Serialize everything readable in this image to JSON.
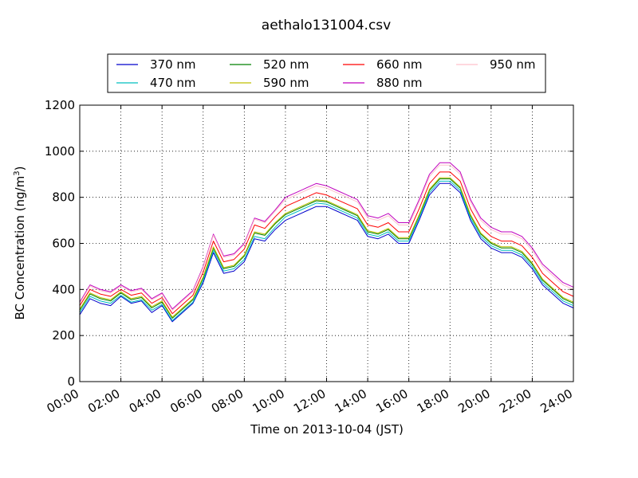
{
  "chart_data": {
    "type": "line",
    "title": "aethalo131004.csv",
    "xlabel": "Time on 2013-10-04 (JST)",
    "ylabel": "BC Concentration (ng/m³)",
    "ylabel_parts": {
      "main": "BC Concentration (ng/m",
      "sup": "3",
      "close": ")"
    },
    "xlim": [
      "00:00",
      "24:00"
    ],
    "ylim": [
      0,
      1200
    ],
    "xticks": [
      "00:00",
      "02:00",
      "04:00",
      "06:00",
      "08:00",
      "10:00",
      "12:00",
      "14:00",
      "16:00",
      "18:00",
      "20:00",
      "22:00",
      "24:00"
    ],
    "yticks": [
      0,
      200,
      400,
      600,
      800,
      1000,
      1200
    ],
    "grid": true,
    "legend_position": "top, above plot",
    "x": [
      "00:00",
      "00:30",
      "01:00",
      "01:30",
      "02:00",
      "02:30",
      "03:00",
      "03:30",
      "04:00",
      "04:30",
      "05:00",
      "05:30",
      "06:00",
      "06:30",
      "07:00",
      "07:30",
      "08:00",
      "08:30",
      "09:00",
      "09:30",
      "10:00",
      "10:30",
      "11:00",
      "11:30",
      "12:00",
      "12:30",
      "13:00",
      "13:30",
      "14:00",
      "14:30",
      "15:00",
      "15:30",
      "16:00",
      "16:30",
      "17:00",
      "17:30",
      "18:00",
      "18:30",
      "19:00",
      "19:30",
      "20:00",
      "20:30",
      "21:00",
      "21:30",
      "22:00",
      "22:30",
      "23:00",
      "23:30",
      "24:00"
    ],
    "series": [
      {
        "name": "370 nm",
        "color": "#0000cc",
        "values": [
          290,
          360,
          340,
          330,
          370,
          340,
          350,
          300,
          330,
          260,
          300,
          340,
          430,
          560,
          470,
          480,
          520,
          620,
          610,
          660,
          700,
          720,
          740,
          760,
          760,
          740,
          720,
          700,
          630,
          620,
          640,
          600,
          600,
          700,
          810,
          860,
          860,
          820,
          700,
          620,
          580,
          560,
          560,
          540,
          490,
          420,
          380,
          340,
          320
        ]
      },
      {
        "name": "470 nm",
        "color": "#00bfbf",
        "values": [
          300,
          370,
          350,
          340,
          375,
          345,
          355,
          310,
          335,
          265,
          305,
          345,
          440,
          570,
          480,
          490,
          530,
          630,
          620,
          670,
          715,
          735,
          755,
          775,
          770,
          750,
          730,
          710,
          640,
          630,
          650,
          610,
          610,
          710,
          820,
          870,
          870,
          830,
          710,
          630,
          590,
          570,
          570,
          550,
          500,
          430,
          390,
          350,
          330
        ]
      },
      {
        "name": "520 nm",
        "color": "#008000",
        "values": [
          310,
          380,
          360,
          350,
          385,
          355,
          365,
          320,
          345,
          275,
          315,
          355,
          450,
          580,
          490,
          500,
          545,
          645,
          635,
          685,
          725,
          745,
          765,
          785,
          780,
          760,
          740,
          720,
          650,
          640,
          660,
          620,
          620,
          720,
          830,
          880,
          880,
          840,
          720,
          640,
          600,
          580,
          580,
          560,
          510,
          440,
          400,
          360,
          340
        ]
      },
      {
        "name": "590 nm",
        "color": "#bfbf00",
        "values": [
          315,
          385,
          365,
          355,
          390,
          360,
          370,
          325,
          350,
          280,
          320,
          360,
          455,
          585,
          495,
          505,
          550,
          650,
          640,
          690,
          730,
          750,
          770,
          790,
          785,
          765,
          745,
          725,
          655,
          645,
          665,
          625,
          625,
          725,
          835,
          885,
          885,
          845,
          725,
          645,
          605,
          585,
          585,
          565,
          515,
          445,
          405,
          365,
          345
        ]
      },
      {
        "name": "660 nm",
        "color": "#ff0000",
        "values": [
          330,
          400,
          380,
          370,
          400,
          375,
          385,
          340,
          365,
          295,
          335,
          375,
          475,
          610,
          520,
          530,
          575,
          680,
          665,
          715,
          760,
          780,
          800,
          820,
          810,
          790,
          770,
          750,
          680,
          670,
          690,
          650,
          650,
          750,
          860,
          910,
          910,
          870,
          750,
          670,
          630,
          610,
          610,
          590,
          540,
          470,
          430,
          390,
          370
        ]
      },
      {
        "name": "880 nm",
        "color": "#bf00bf",
        "values": [
          345,
          420,
          400,
          390,
          420,
          395,
          405,
          360,
          385,
          315,
          355,
          395,
          500,
          640,
          545,
          555,
          600,
          710,
          695,
          745,
          800,
          820,
          840,
          860,
          850,
          830,
          810,
          790,
          720,
          710,
          730,
          690,
          690,
          790,
          900,
          950,
          950,
          910,
          790,
          710,
          670,
          650,
          650,
          630,
          580,
          510,
          470,
          430,
          410
        ]
      },
      {
        "name": "950 nm",
        "color": "#ffc0cb",
        "values": [
          340,
          415,
          395,
          385,
          415,
          390,
          400,
          355,
          380,
          310,
          350,
          390,
          495,
          635,
          540,
          550,
          595,
          705,
          690,
          740,
          790,
          810,
          830,
          850,
          840,
          820,
          800,
          780,
          710,
          700,
          720,
          680,
          680,
          780,
          890,
          940,
          940,
          900,
          780,
          700,
          660,
          640,
          640,
          620,
          570,
          500,
          460,
          420,
          400
        ]
      }
    ]
  }
}
